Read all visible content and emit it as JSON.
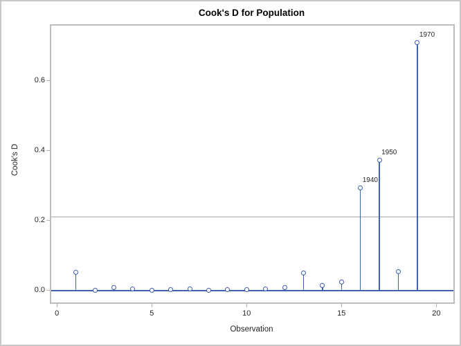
{
  "chart_data": {
    "type": "needle",
    "title": "Cook's D for Population",
    "xlabel": "Observation",
    "ylabel": "Cook's D",
    "xlim": [
      -0.3,
      20.9
    ],
    "ylim": [
      -0.034,
      0.758
    ],
    "grid": false,
    "legend": false,
    "x_ticks": [
      {
        "value": 0,
        "label": "0"
      },
      {
        "value": 5,
        "label": "5"
      },
      {
        "value": 10,
        "label": "10"
      },
      {
        "value": 15,
        "label": "15"
      },
      {
        "value": 20,
        "label": "20"
      }
    ],
    "y_ticks": [
      {
        "value": 0.0,
        "label": "0.0"
      },
      {
        "value": 0.2,
        "label": "0.2"
      },
      {
        "value": 0.4,
        "label": "0.4"
      },
      {
        "value": 0.6,
        "label": "0.6"
      }
    ],
    "reference_line_y": 0.21,
    "baseline_y": 0.0,
    "points": [
      {
        "obs": 1,
        "value": 0.053
      },
      {
        "obs": 2,
        "value": 0.001
      },
      {
        "obs": 3,
        "value": 0.008
      },
      {
        "obs": 4,
        "value": 0.004
      },
      {
        "obs": 5,
        "value": 0.001
      },
      {
        "obs": 6,
        "value": 0.002
      },
      {
        "obs": 7,
        "value": 0.004
      },
      {
        "obs": 8,
        "value": 0.001
      },
      {
        "obs": 9,
        "value": 0.003
      },
      {
        "obs": 10,
        "value": 0.002
      },
      {
        "obs": 11,
        "value": 0.004
      },
      {
        "obs": 12,
        "value": 0.008
      },
      {
        "obs": 13,
        "value": 0.05
      },
      {
        "obs": 14,
        "value": 0.014
      },
      {
        "obs": 15,
        "value": 0.025
      },
      {
        "obs": 16,
        "value": 0.294,
        "label": "1940"
      },
      {
        "obs": 17,
        "value": 0.373,
        "label": "1950"
      },
      {
        "obs": 18,
        "value": 0.054
      },
      {
        "obs": 19,
        "value": 0.71,
        "label": "1970"
      }
    ]
  },
  "colors": {
    "needle": "#4060B0",
    "marker_stroke": "#3A5BAC",
    "reference_line": "#A9A9A9",
    "tick": "#AFAFAF",
    "text": "#262626",
    "background": "#FFFFFF"
  }
}
